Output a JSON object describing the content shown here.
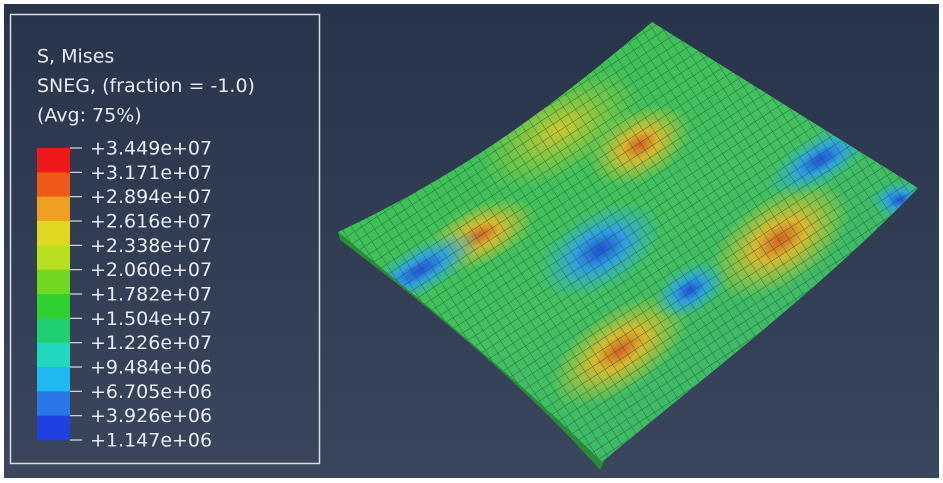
{
  "legend": {
    "title_lines": [
      "S, Mises",
      "SNEG, (fraction = -1.0)",
      "(Avg: 75%)"
    ],
    "tick_labels": [
      "+3.449e+07",
      "+3.171e+07",
      "+2.894e+07",
      "+2.616e+07",
      "+2.338e+07",
      "+2.060e+07",
      "+1.782e+07",
      "+1.504e+07",
      "+1.226e+07",
      "+9.484e+06",
      "+6.705e+06",
      "+3.926e+06",
      "+1.147e+06"
    ],
    "band_colors": [
      "#f01818",
      "#f05a18",
      "#f0a020",
      "#e0d820",
      "#b8e020",
      "#70d820",
      "#30d030",
      "#20d070",
      "#20d8c0",
      "#20b8f0",
      "#2a78e8",
      "#2040e0"
    ]
  }
}
